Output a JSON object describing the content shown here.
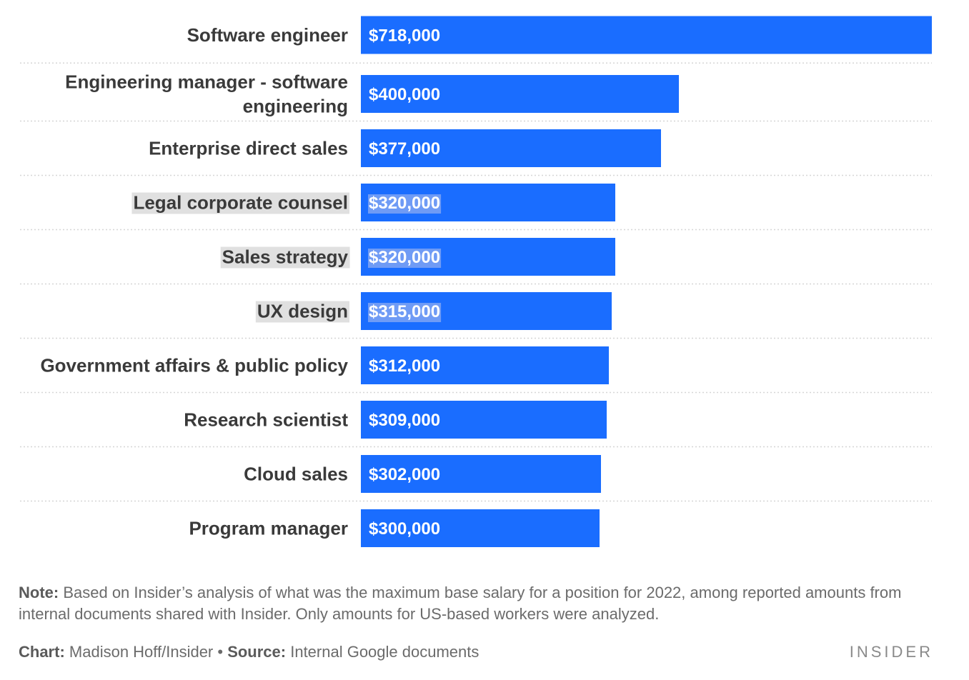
{
  "chart_data": {
    "type": "bar",
    "orientation": "horizontal",
    "categories": [
      [
        "Software engineer"
      ],
      [
        "Engineering manager - software",
        "engineering"
      ],
      [
        "Enterprise direct sales"
      ],
      [
        "Legal corporate counsel"
      ],
      [
        "Sales strategy"
      ],
      [
        "UX design"
      ],
      [
        "Government affairs & public policy"
      ],
      [
        "Research scientist"
      ],
      [
        "Cloud sales"
      ],
      [
        "Program manager"
      ]
    ],
    "values": [
      718000,
      400000,
      377000,
      320000,
      320000,
      315000,
      312000,
      309000,
      302000,
      300000
    ],
    "value_labels": [
      "$718,000",
      "$400,000",
      "$377,000",
      "$320,000",
      "$320,000",
      "$315,000",
      "$312,000",
      "$309,000",
      "$302,000",
      "$300,000"
    ],
    "highlighted": [
      false,
      false,
      false,
      true,
      true,
      true,
      false,
      false,
      false,
      false
    ],
    "xlim": [
      0,
      718000
    ],
    "bar_color": "#1a6dff",
    "grid": false
  },
  "note": {
    "label": "Note:",
    "text": " Based on Insider’s analysis of what was the maximum base salary for a position for 2022, among reported amounts from internal documents shared with Insider. Only amounts for US-based workers were analyzed."
  },
  "footer": {
    "chart_label": "Chart:",
    "chart_author": " Madison Hoff/Insider • ",
    "source_label": "Source:",
    "source_text": " Internal Google documents"
  },
  "logo": "INSIDER"
}
